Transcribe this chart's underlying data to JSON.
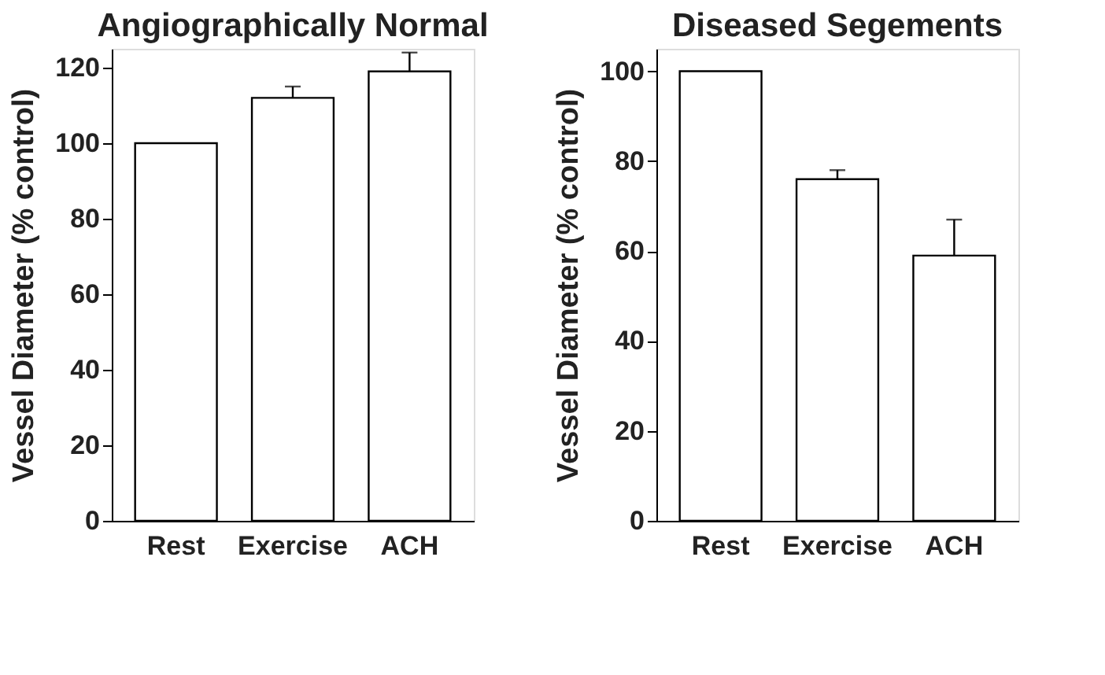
{
  "chart_data": [
    {
      "type": "bar",
      "title": "Angiographically Normal",
      "ylabel": "Vessel Diameter (% control)",
      "categories": [
        "Rest",
        "Exercise",
        "ACH"
      ],
      "values": [
        100,
        112,
        119
      ],
      "errors": [
        null,
        [
          112,
          115
        ],
        [
          119,
          124
        ]
      ],
      "color": "#ffffff",
      "ylim": [
        0,
        125
      ],
      "yticks": [
        0,
        20,
        40,
        60,
        80,
        100,
        120
      ],
      "grid": false
    },
    {
      "type": "bar",
      "title": "Diseased Segements",
      "ylabel": "Vessel Diameter (% control)",
      "categories": [
        "Rest",
        "Exercise",
        "ACH"
      ],
      "values": [
        100,
        76,
        59
      ],
      "errors": [
        null,
        [
          76,
          78
        ],
        [
          59,
          67
        ]
      ],
      "color": "#ffffff",
      "ylim": [
        0,
        105
      ],
      "yticks": [
        0,
        20,
        40,
        60,
        80,
        100
      ],
      "grid": false
    }
  ]
}
